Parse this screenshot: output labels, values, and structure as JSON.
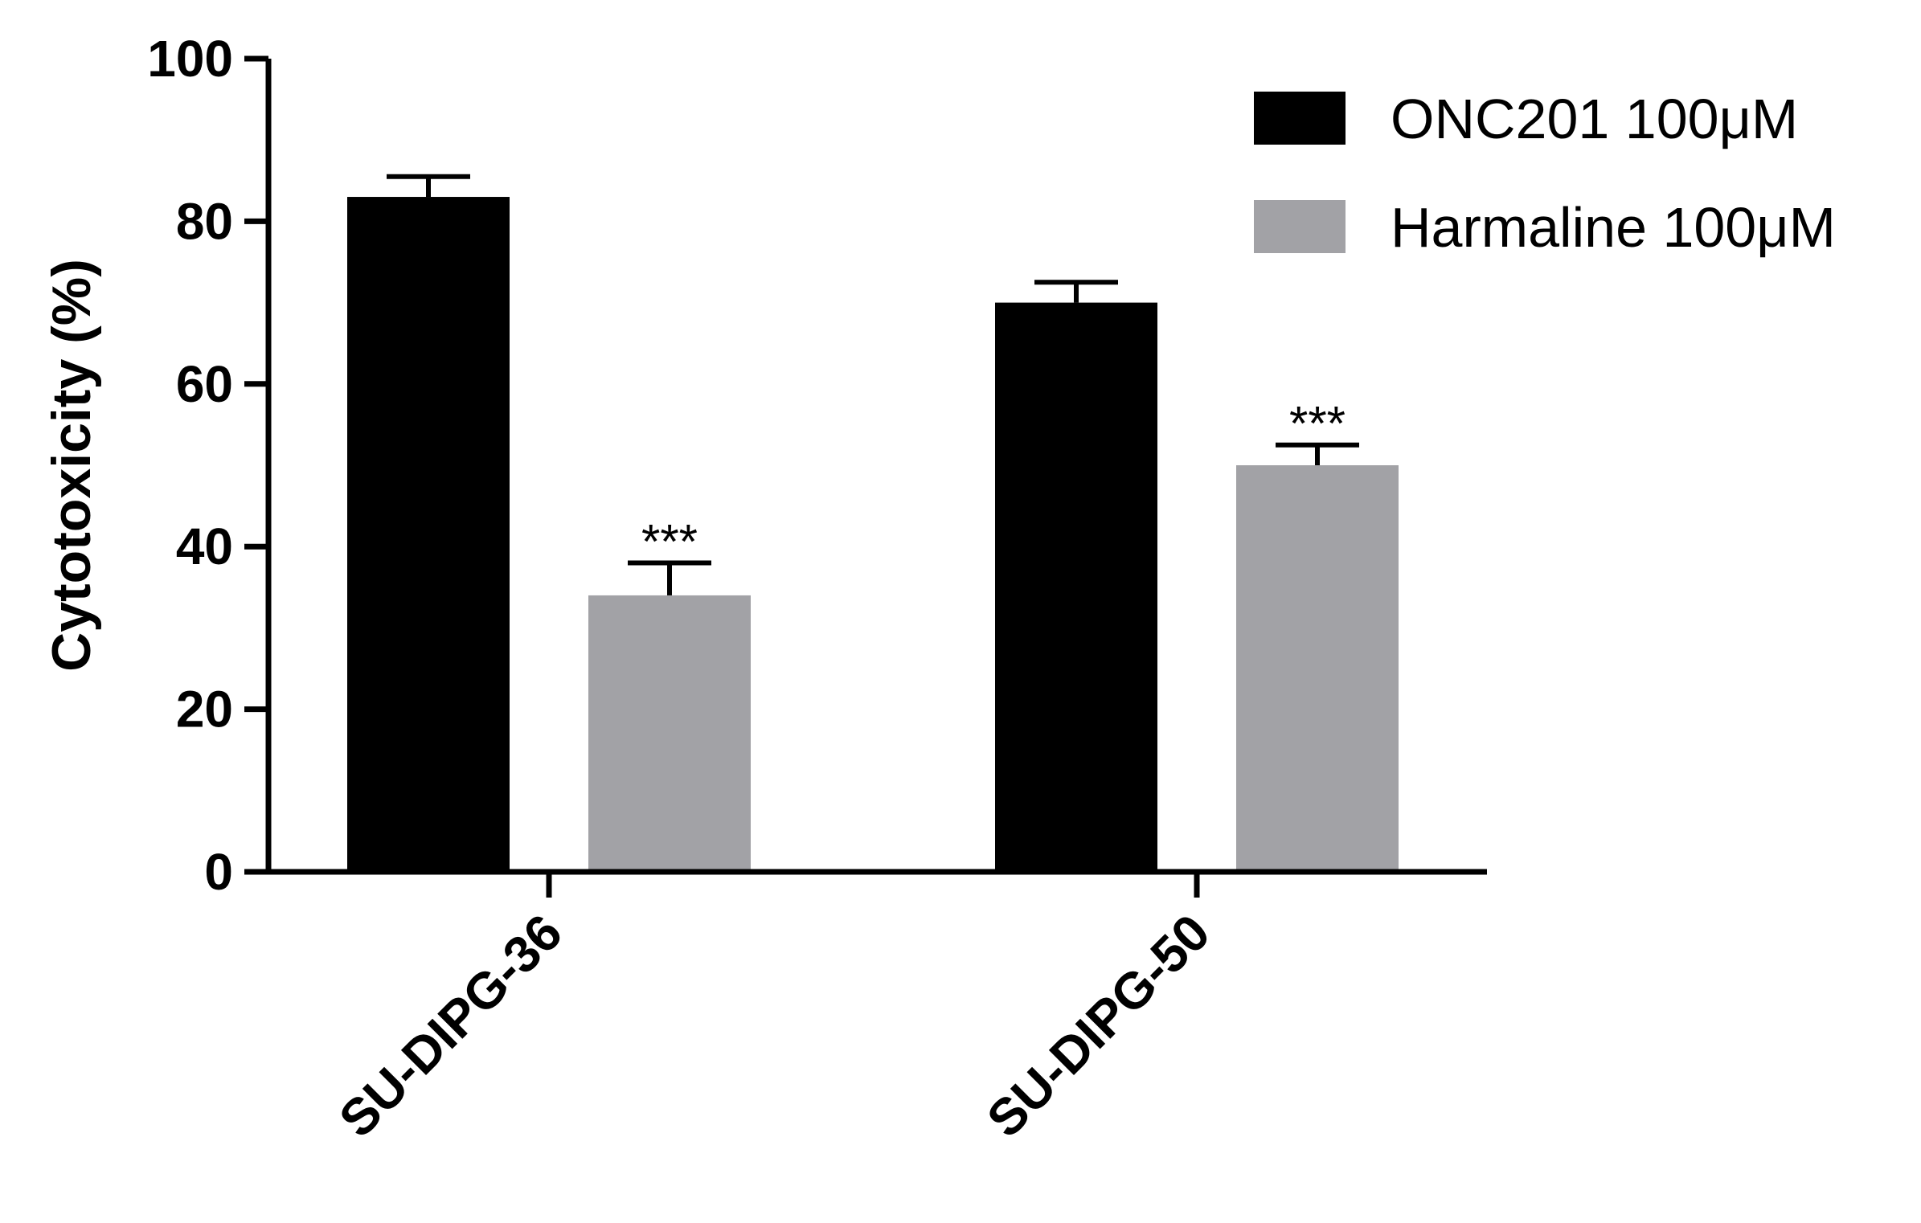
{
  "chart_data": {
    "type": "bar",
    "categories": [
      "SU-DIPG-36",
      "SU-DIPG-50"
    ],
    "series": [
      {
        "name": "ONC201 100μM",
        "values": [
          83,
          70
        ],
        "errors": [
          2.5,
          2.5
        ],
        "color": "#000000",
        "significance": [
          "",
          ""
        ]
      },
      {
        "name": "Harmaline 100μM",
        "values": [
          34,
          50
        ],
        "errors": [
          4,
          2.5
        ],
        "color": "#a2a2a6",
        "significance": [
          "***",
          "***"
        ]
      }
    ],
    "ylabel": "Cytotoxicity (%)",
    "xlabel": "",
    "ylim": [
      0,
      100
    ],
    "yticks": [
      0,
      20,
      40,
      60,
      80,
      100
    ],
    "legend_position": "top-right",
    "grid": false
  }
}
